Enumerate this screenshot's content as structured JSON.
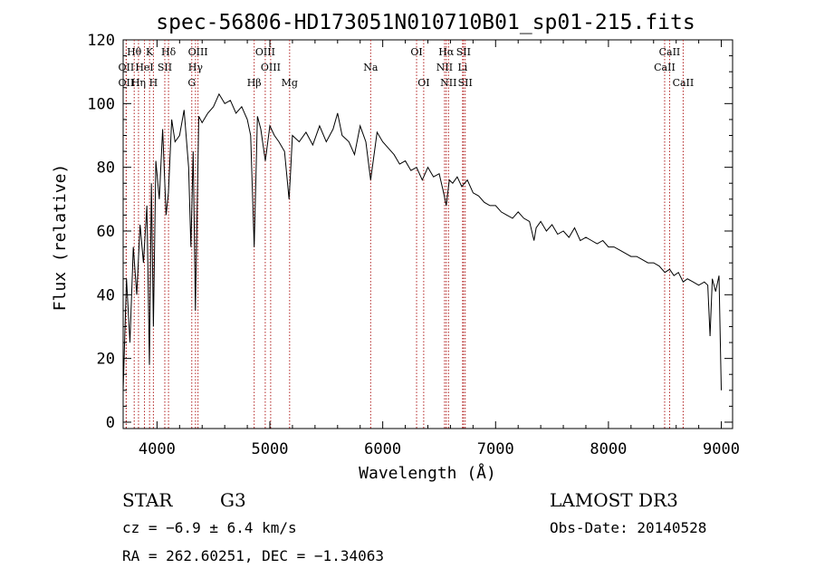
{
  "chart_data": {
    "type": "line",
    "title": "spec-56806-HD173051N010710B01_sp01-215.fits",
    "xlabel": "Wavelength (Å)",
    "ylabel": "Flux (relative)",
    "xlim": [
      3700,
      9100
    ],
    "ylim": [
      -2,
      120
    ],
    "xticks": [
      4000,
      5000,
      6000,
      7000,
      8000,
      9000
    ],
    "yticks": [
      0,
      20,
      40,
      60,
      80,
      100,
      120
    ],
    "grid": false,
    "legend": "none",
    "line_colors": {
      "spectrum": "#000000",
      "markers": "#b22222"
    },
    "spectrum": {
      "name": "flux",
      "x": [
        3700,
        3730,
        3760,
        3790,
        3820,
        3850,
        3880,
        3910,
        3933,
        3950,
        3968,
        3990,
        4020,
        4050,
        4080,
        4101,
        4130,
        4160,
        4200,
        4240,
        4280,
        4300,
        4320,
        4340,
        4370,
        4400,
        4450,
        4500,
        4550,
        4600,
        4650,
        4700,
        4750,
        4800,
        4830,
        4861,
        4890,
        4920,
        4960,
        5000,
        5040,
        5080,
        5130,
        5170,
        5183,
        5200,
        5260,
        5320,
        5380,
        5440,
        5500,
        5560,
        5600,
        5640,
        5700,
        5750,
        5800,
        5850,
        5893,
        5950,
        6000,
        6050,
        6100,
        6150,
        6200,
        6250,
        6300,
        6350,
        6400,
        6450,
        6500,
        6540,
        6563,
        6590,
        6620,
        6660,
        6700,
        6750,
        6800,
        6850,
        6900,
        6950,
        7000,
        7050,
        7100,
        7150,
        7200,
        7250,
        7300,
        7340,
        7360,
        7400,
        7450,
        7500,
        7550,
        7600,
        7650,
        7700,
        7750,
        7800,
        7850,
        7900,
        7950,
        8000,
        8050,
        8100,
        8150,
        8200,
        8250,
        8300,
        8350,
        8400,
        8450,
        8500,
        8542,
        8580,
        8620,
        8662,
        8700,
        8750,
        8800,
        8850,
        8880,
        8900,
        8920,
        8950,
        8980,
        9000
      ],
      "y": [
        10,
        45,
        25,
        55,
        40,
        62,
        50,
        68,
        18,
        75,
        30,
        82,
        70,
        92,
        65,
        72,
        95,
        88,
        90,
        98,
        80,
        55,
        85,
        35,
        96,
        94,
        97,
        99,
        103,
        100,
        101,
        97,
        99,
        95,
        90,
        55,
        96,
        92,
        82,
        93,
        90,
        88,
        85,
        70,
        78,
        90,
        88,
        91,
        87,
        93,
        88,
        92,
        97,
        90,
        88,
        84,
        93,
        88,
        76,
        91,
        88,
        86,
        84,
        81,
        82,
        79,
        80,
        76,
        80,
        77,
        78,
        72,
        68,
        76,
        75,
        77,
        74,
        76,
        72,
        71,
        69,
        68,
        68,
        66,
        65,
        64,
        66,
        64,
        63,
        57,
        61,
        63,
        60,
        62,
        59,
        60,
        58,
        61,
        57,
        58,
        57,
        56,
        57,
        55,
        55,
        54,
        53,
        52,
        52,
        51,
        50,
        50,
        49,
        47,
        48,
        46,
        47,
        44,
        45,
        44,
        43,
        44,
        43,
        27,
        45,
        41,
        46,
        10
      ]
    },
    "lines": [
      {
        "name": "Hθ",
        "wave": 3798,
        "row": 1
      },
      {
        "name": "OII",
        "wave": 3727,
        "row": 2
      },
      {
        "name": "OII",
        "wave": 3727,
        "row": 3
      },
      {
        "name": "Hη",
        "wave": 3836,
        "row": 3
      },
      {
        "name": "HeI",
        "wave": 3889,
        "row": 2
      },
      {
        "name": "K",
        "wave": 3934,
        "row": 1
      },
      {
        "name": "SII",
        "wave": 4069,
        "row": 2
      },
      {
        "name": "H",
        "wave": 3968,
        "row": 3
      },
      {
        "name": "Hδ",
        "wave": 4102,
        "row": 1
      },
      {
        "name": "OIII",
        "wave": 4363,
        "row": 1
      },
      {
        "name": "Hγ",
        "wave": 4341,
        "row": 2
      },
      {
        "name": "G",
        "wave": 4308,
        "row": 3
      },
      {
        "name": "Hβ",
        "wave": 4861,
        "row": 3
      },
      {
        "name": "OIII",
        "wave": 4959,
        "row": 1
      },
      {
        "name": "OIII",
        "wave": 5007,
        "row": 2
      },
      {
        "name": "Mg",
        "wave": 5175,
        "row": 3
      },
      {
        "name": "Na",
        "wave": 5893,
        "row": 2
      },
      {
        "name": "OI",
        "wave": 6300,
        "row": 1
      },
      {
        "name": "OI",
        "wave": 6363,
        "row": 3
      },
      {
        "name": "Hα",
        "wave": 6563,
        "row": 1
      },
      {
        "name": "SII",
        "wave": 6716,
        "row": 1
      },
      {
        "name": "NII",
        "wave": 6548,
        "row": 2
      },
      {
        "name": "Li",
        "wave": 6708,
        "row": 2
      },
      {
        "name": "NII",
        "wave": 6583,
        "row": 3
      },
      {
        "name": "SII",
        "wave": 6731,
        "row": 3
      },
      {
        "name": "CaII",
        "wave": 8542,
        "row": 1
      },
      {
        "name": "CaII",
        "wave": 8498,
        "row": 2
      },
      {
        "name": "CaII",
        "wave": 8662,
        "row": 3
      }
    ]
  },
  "footer": {
    "object_type": "STAR",
    "subclass": "G3",
    "cz": "cz = −6.9 ± 6.4 km/s",
    "coords": "RA = 262.60251, DEC =  −1.34063",
    "survey": "LAMOST DR3",
    "obs_date": "Obs-Date: 20140528"
  }
}
